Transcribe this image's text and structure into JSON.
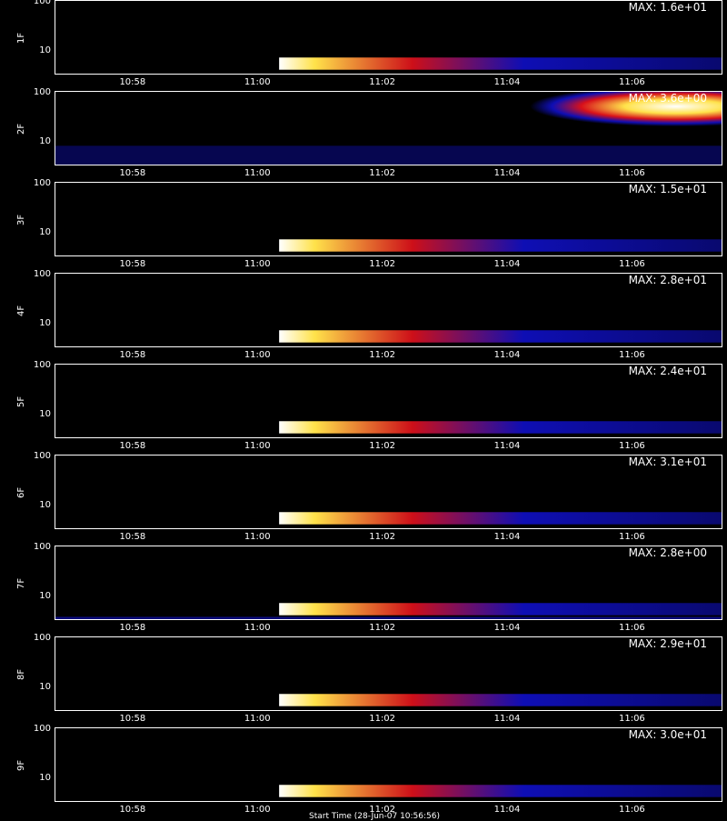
{
  "chart_data": {
    "type": "heatmap",
    "x_ticks": [
      "10:58",
      "11:00",
      "11:02",
      "11:04",
      "11:06"
    ],
    "y_ticks": [
      "100",
      "10"
    ],
    "scale": "log",
    "panels": [
      {
        "label": "1F",
        "max_label": "MAX: 1.6e+01",
        "burst_start": "11:00:20",
        "feature": "low-band burst"
      },
      {
        "label": "2F",
        "max_label": "MAX: 3.6e+00",
        "burst_start": "11:04:30",
        "feature": "high-band plume"
      },
      {
        "label": "3F",
        "max_label": "MAX: 1.5e+01",
        "burst_start": "11:00:20",
        "feature": "low-band burst"
      },
      {
        "label": "4F",
        "max_label": "MAX: 2.8e+01",
        "burst_start": "11:00:20",
        "feature": "low-band burst"
      },
      {
        "label": "5F",
        "max_label": "MAX: 2.4e+01",
        "burst_start": "11:00:20",
        "feature": "low-band burst"
      },
      {
        "label": "6F",
        "max_label": "MAX: 3.1e+01",
        "burst_start": "11:00:20",
        "feature": "low-band burst"
      },
      {
        "label": "7F",
        "max_label": "MAX: 2.8e+00",
        "burst_start": "11:00:20",
        "feature": "low-band burst"
      },
      {
        "label": "8F",
        "max_label": "MAX: 2.9e+01",
        "burst_start": "11:00:20",
        "feature": "low-band burst"
      },
      {
        "label": "9F",
        "max_label": "MAX: 3.0e+01",
        "burst_start": "11:00:20",
        "feature": "low-band burst"
      }
    ],
    "colors": {
      "hot": "#ffffff",
      "yellow": "#ffe24a",
      "red": "#d8101a",
      "blue": "#1010c8",
      "background": "#000000"
    }
  },
  "footer": "Start Time (28-Jun-07 10:56:56)"
}
